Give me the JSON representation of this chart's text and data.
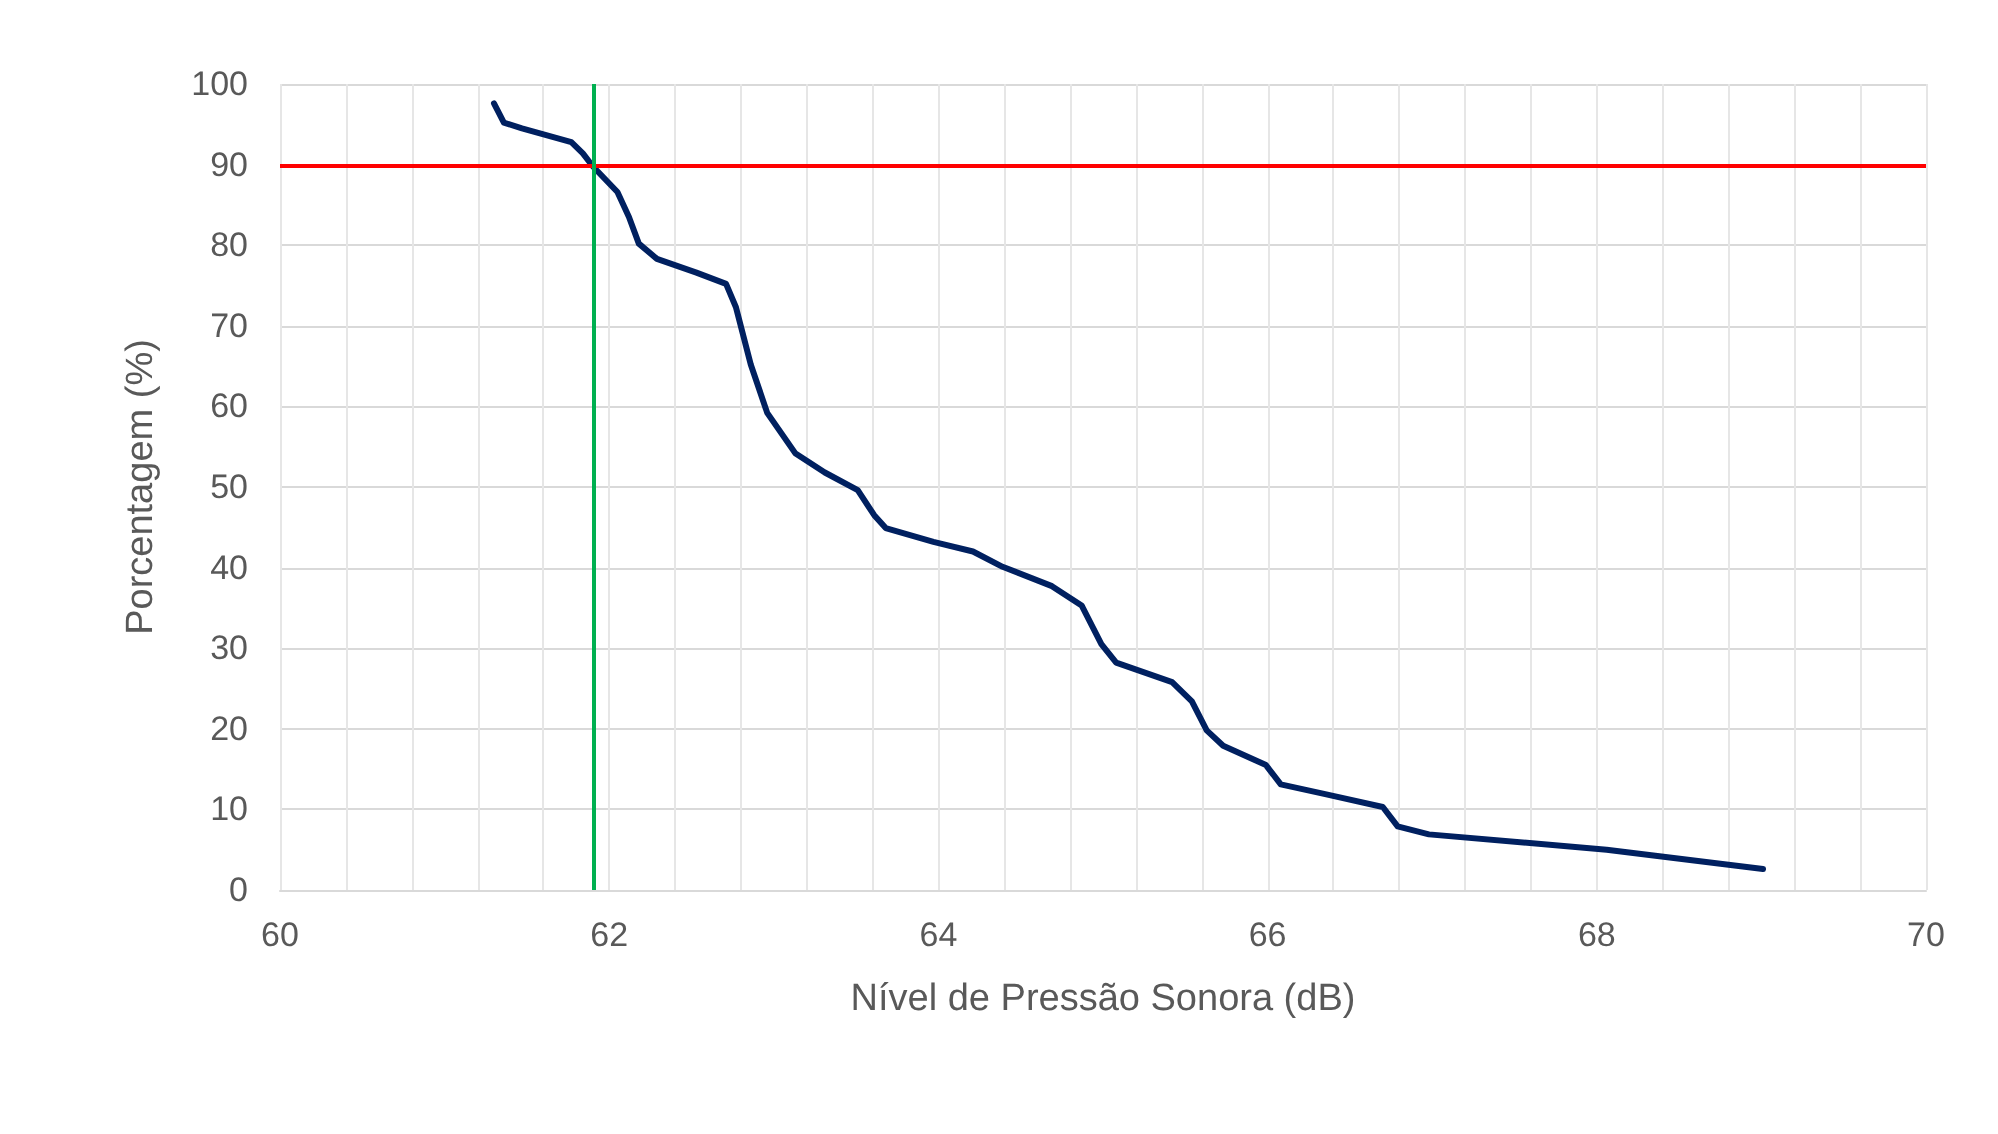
{
  "chart_data": {
    "type": "line",
    "xlabel": "Nível de Pressão Sonora (dB)",
    "ylabel": "Porcentagem (%)",
    "x": [
      61.3,
      61.36,
      61.47,
      61.77,
      61.84,
      61.9,
      62.05,
      62.12,
      62.18,
      62.29,
      62.53,
      62.71,
      62.77,
      62.86,
      62.96,
      63.13,
      63.31,
      63.51,
      63.61,
      63.68,
      63.97,
      64.21,
      64.39,
      64.69,
      64.87,
      64.99,
      65.08,
      65.42,
      65.54,
      65.63,
      65.73,
      65.99,
      66.08,
      66.35,
      66.7,
      66.79,
      66.98,
      68.06,
      69.01
    ],
    "series": [
      {
        "color": "#002060",
        "values": [
          97.6,
          95.2,
          94.5,
          92.8,
          91.4,
          89.8,
          86.6,
          83.5,
          80.2,
          78.3,
          76.6,
          75.2,
          72.3,
          65.2,
          59.2,
          54.2,
          51.8,
          49.6,
          46.5,
          44.9,
          43.2,
          42,
          40.1,
          37.7,
          35.3,
          30.5,
          28.2,
          25.8,
          23.4,
          19.8,
          17.9,
          15.5,
          13.1,
          11.9,
          10.3,
          7.9,
          6.9,
          5,
          2.6
        ]
      }
    ],
    "xlim": [
      60,
      70
    ],
    "xticks": [
      60,
      {
        "value": 60.4,
        "label": null
      },
      {
        "value": 60.8,
        "label": null
      },
      {
        "value": 61.2,
        "label": null
      },
      {
        "value": 61.6,
        "label": null
      },
      62,
      {
        "value": 62.4,
        "label": null
      },
      {
        "value": 62.8,
        "label": null
      },
      {
        "value": 63.2,
        "label": null
      },
      {
        "value": 63.6,
        "label": null
      },
      64,
      {
        "value": 64.4,
        "label": null
      },
      {
        "value": 64.8,
        "label": null
      },
      {
        "value": 65.2,
        "label": null
      },
      {
        "value": 65.6,
        "label": null
      },
      66,
      {
        "value": 66.4,
        "label": null
      },
      {
        "value": 66.8,
        "label": null
      },
      {
        "value": 67.2,
        "label": null
      },
      {
        "value": 67.6,
        "label": null
      },
      68,
      {
        "value": 68.4,
        "label": null
      },
      {
        "value": 68.8,
        "label": null
      },
      {
        "value": 69.2,
        "label": null
      },
      {
        "value": 69.6,
        "label": null
      },
      70
    ],
    "ylim": [
      0,
      100
    ],
    "yticks": [
      0,
      10,
      20,
      30,
      40,
      50,
      60,
      70,
      80,
      90,
      100
    ],
    "grid": true,
    "marker": "none",
    "line_style": "solid",
    "ref_lines": [
      {
        "axis": "y",
        "value": 90,
        "color": "#ff0000"
      },
      {
        "axis": "x",
        "value": 61.9,
        "color": "#00b050"
      }
    ]
  }
}
